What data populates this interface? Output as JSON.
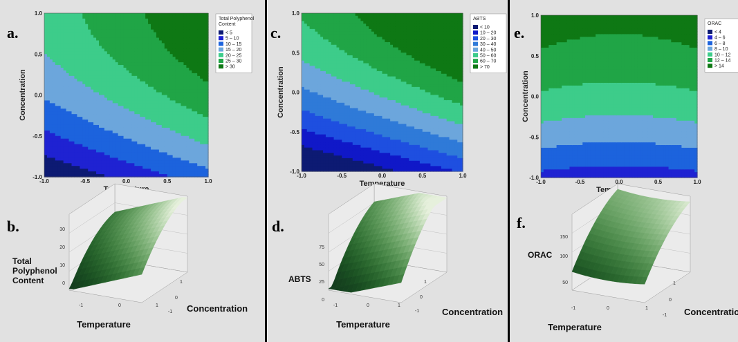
{
  "chart_data": [
    {
      "type": "heatmap",
      "panel_label": "a.",
      "xlabel": "Temperature",
      "ylabel": "Concentration",
      "xlim": [
        -1.0,
        1.0
      ],
      "ylim": [
        -1.0,
        1.0
      ],
      "xticks": [
        "-1.0",
        "-0.5",
        "0.0",
        "0.5",
        "1.0"
      ],
      "yticks": [
        "-1.0",
        "-0.5",
        "0.0",
        "0.5",
        "1.0"
      ],
      "legend_title": "Total Polyphenol Content",
      "legend_entries": [
        "< 5",
        "5 – 10",
        "10 – 15",
        "15 – 20",
        "20 – 25",
        "25 – 30",
        "> 30"
      ],
      "legend_colors": [
        "#0d1a73",
        "#1f22d2",
        "#1c63dd",
        "#6ca6dc",
        "#3dcc8a",
        "#20a546",
        "#0e7814"
      ],
      "levels": [
        5,
        10,
        15,
        20,
        25,
        30
      ],
      "surface_model": {
        "b0": 22,
        "bT": 6.5,
        "bC": 11,
        "bTT": 0,
        "bCC": -4.5,
        "bTC": 0
      }
    },
    {
      "type": "heatmap",
      "panel_label": "c.",
      "xlabel": "Temperature",
      "ylabel": "Concentration",
      "xlim": [
        -1.0,
        1.0
      ],
      "ylim": [
        -1.0,
        1.0
      ],
      "xticks": [
        "-1.0",
        "-0.5",
        "0.0",
        "0.5",
        "1.0"
      ],
      "yticks": [
        "-1.0",
        "-0.5",
        "0.0",
        "0.5",
        "1.0"
      ],
      "legend_title": "ABTS",
      "legend_entries": [
        "< 10",
        "10 – 20",
        "20 – 30",
        "30 – 40",
        "40 – 50",
        "50 – 60",
        "60 – 70",
        "> 70"
      ],
      "legend_colors": [
        "#0d1a73",
        "#1018c8",
        "#1e4fe0",
        "#2f7ad8",
        "#6ca6dc",
        "#3dcc8a",
        "#20a546",
        "#0e7814"
      ],
      "levels": [
        10,
        20,
        30,
        40,
        50,
        60,
        70
      ],
      "surface_model": {
        "b0": 52,
        "bT": 14,
        "bC": 34,
        "bTT": 0,
        "bCC": -11,
        "bTC": 0
      }
    },
    {
      "type": "heatmap",
      "panel_label": "e.",
      "xlabel": "Temperature",
      "ylabel": "Concentration",
      "xlim": [
        -1.0,
        1.0
      ],
      "ylim": [
        -1.0,
        1.0
      ],
      "xticks": [
        "-1.0",
        "-0.5",
        "0.0",
        "0.5",
        "1.0"
      ],
      "yticks": [
        "-1.0",
        "-0.5",
        "0.0",
        "0.5",
        "1.0"
      ],
      "legend_title": "ORAC",
      "legend_entries": [
        "< 4",
        "4 – 6",
        "6 – 8",
        "8 – 10",
        "10 – 12",
        "12 – 14",
        "> 14"
      ],
      "legend_colors": [
        "#0d1a73",
        "#1f22d2",
        "#1c63dd",
        "#6ca6dc",
        "#3dcc8a",
        "#20a546",
        "#0e7814"
      ],
      "levels": [
        4,
        6,
        8,
        10,
        12,
        14
      ],
      "surface_model": {
        "b0": 11.2,
        "bT": 0,
        "bC": 4.8,
        "bTT": 0.5,
        "bCC": -1.5,
        "bTC": 0
      }
    }
  ],
  "surface_plots": [
    {
      "panel_label": "b.",
      "zlabel_lines": [
        "Total",
        "Polyphenol",
        "Content"
      ],
      "xlabel": "Temperature",
      "ylabel": "Concentration",
      "z_ticks": [
        "30",
        "20",
        "10",
        "0"
      ],
      "x_ticks": [
        "-1",
        "0",
        "1"
      ],
      "y_ticks": [
        "1",
        "0",
        "-1"
      ]
    },
    {
      "panel_label": "d.",
      "zlabel_lines": [
        "ABTS"
      ],
      "xlabel": "Temperature",
      "ylabel": "Concentration",
      "z_ticks": [
        "75",
        "50",
        "25",
        "0"
      ],
      "x_ticks": [
        "-1",
        "0",
        "1"
      ],
      "y_ticks": [
        "1",
        "0",
        "-1"
      ]
    },
    {
      "panel_label": "f.",
      "zlabel_lines": [
        "ORAC"
      ],
      "xlabel": "Temperature",
      "ylabel": "Concentration",
      "z_ticks": [
        "150",
        "100",
        "50"
      ],
      "x_ticks": [
        "-1",
        "0",
        "1"
      ],
      "y_ticks": [
        "1",
        "0",
        "-1"
      ]
    }
  ]
}
